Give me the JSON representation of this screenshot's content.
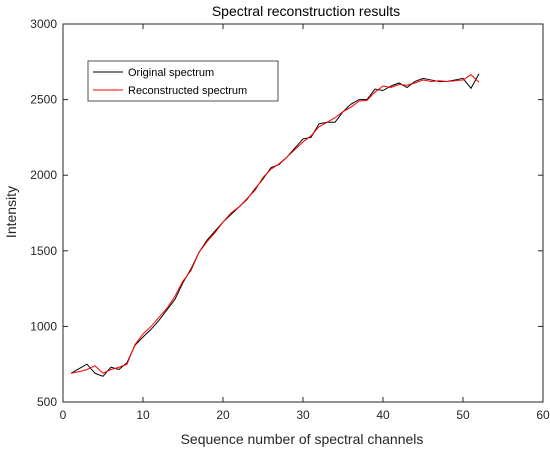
{
  "chart_data": {
    "type": "line",
    "title": "Spectral reconstruction results",
    "xlabel": "Sequence number of spectral channels",
    "ylabel": "Intensity",
    "xlim": [
      0,
      60
    ],
    "ylim": [
      500,
      3000
    ],
    "xticks": [
      0,
      10,
      20,
      30,
      40,
      50,
      60
    ],
    "yticks": [
      500,
      1000,
      1500,
      2000,
      2500,
      3000
    ],
    "grid": false,
    "legend_position": "top-left",
    "x": [
      1,
      2,
      3,
      4,
      5,
      6,
      7,
      8,
      9,
      10,
      11,
      12,
      13,
      14,
      15,
      16,
      17,
      18,
      19,
      20,
      21,
      22,
      23,
      24,
      25,
      26,
      27,
      28,
      29,
      30,
      31,
      32,
      33,
      34,
      35,
      36,
      37,
      38,
      39,
      40,
      41,
      42,
      43,
      44,
      45,
      46,
      47,
      48,
      49,
      50,
      51,
      52
    ],
    "series": [
      {
        "name": "Original spectrum",
        "color": "#000000",
        "values": [
          690,
          720,
          750,
          690,
          670,
          730,
          715,
          760,
          875,
          930,
          980,
          1040,
          1110,
          1180,
          1290,
          1380,
          1490,
          1570,
          1630,
          1690,
          1740,
          1790,
          1840,
          1910,
          1975,
          2050,
          2070,
          2120,
          2180,
          2240,
          2250,
          2340,
          2350,
          2350,
          2420,
          2470,
          2500,
          2500,
          2570,
          2560,
          2590,
          2610,
          2580,
          2620,
          2640,
          2630,
          2620,
          2620,
          2630,
          2640,
          2575,
          2670
        ]
      },
      {
        "name": "Reconstructed spectrum",
        "color": "#ff0000",
        "values": [
          690,
          700,
          715,
          740,
          690,
          715,
          730,
          750,
          880,
          950,
          1000,
          1060,
          1120,
          1200,
          1300,
          1370,
          1490,
          1560,
          1620,
          1690,
          1750,
          1790,
          1845,
          1900,
          1985,
          2040,
          2075,
          2120,
          2170,
          2220,
          2260,
          2320,
          2350,
          2380,
          2420,
          2450,
          2490,
          2495,
          2550,
          2590,
          2580,
          2600,
          2595,
          2610,
          2630,
          2620,
          2625,
          2620,
          2625,
          2630,
          2665,
          2615
        ]
      }
    ]
  }
}
